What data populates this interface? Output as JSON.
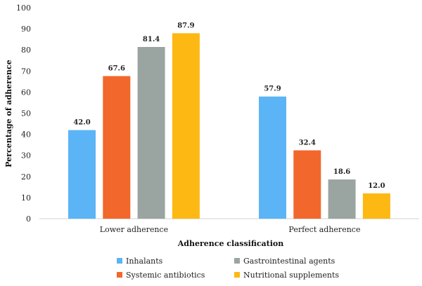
{
  "chart_data": {
    "type": "bar",
    "categories": [
      "Lower adherence",
      "Perfect adherence"
    ],
    "series": [
      {
        "name": "Inhalants",
        "color": "#5BB4F6",
        "values": [
          42.0,
          57.9
        ],
        "labels": [
          "42.0",
          "57.9"
        ]
      },
      {
        "name": "Systemic antibiotics",
        "color": "#F2672B",
        "values": [
          67.6,
          32.4
        ],
        "labels": [
          "67.6",
          "32.4"
        ]
      },
      {
        "name": "Gastrointestinal agents",
        "color": "#9AA5A2",
        "values": [
          81.4,
          18.6
        ],
        "labels": [
          "81.4",
          "18.6"
        ]
      },
      {
        "name": "Nutritional supplements",
        "color": "#FDB813",
        "values": [
          87.9,
          12.0
        ],
        "labels": [
          "87.9",
          "12.0"
        ]
      }
    ],
    "xlabel": "Adherence classification",
    "ylabel": "Percentage of adherence",
    "ylim": [
      0,
      100
    ],
    "yticks": [
      "0",
      "10",
      "20",
      "30",
      "40",
      "50",
      "60",
      "70",
      "80",
      "90",
      "100"
    ],
    "grid": false,
    "legend_position": "bottom",
    "legend_order": [
      "Inhalants",
      "Gastrointestinal agents",
      "Systemic antibiotics",
      "Nutritional supplements"
    ]
  }
}
